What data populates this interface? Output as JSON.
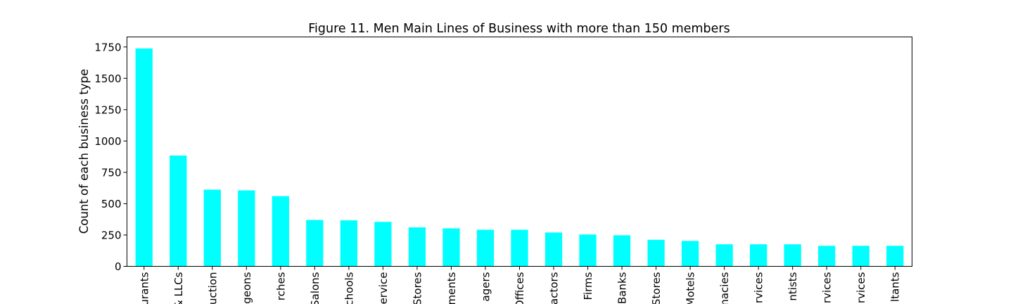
{
  "chart_data": {
    "type": "bar",
    "title": "Figure 11. Men Main Lines of Business with more than 150 members",
    "xlabel": "",
    "ylabel": "Count of each business type",
    "ylim": [
      0,
      1830
    ],
    "yticks": [
      0,
      250,
      500,
      750,
      1000,
      1250,
      1500,
      1750
    ],
    "grid": false,
    "legend": "none",
    "bar_color": "#00ffff",
    "categories": [
      "urants",
      "& LLCs",
      "uction",
      "geons",
      "rches",
      "Salons",
      "chools",
      "ervice",
      "Stores",
      "ments",
      "agers",
      "Offices",
      "actors",
      "Firms",
      "Banks",
      "Stores",
      "Motels",
      "macies",
      "rvices",
      "ntists",
      "rvices",
      "rvices",
      "ltants"
    ],
    "values": [
      1738,
      884,
      612,
      606,
      560,
      370,
      367,
      355,
      311,
      303,
      292,
      292,
      270,
      254,
      248,
      212,
      203,
      176,
      176,
      176,
      164,
      164,
      164
    ]
  }
}
